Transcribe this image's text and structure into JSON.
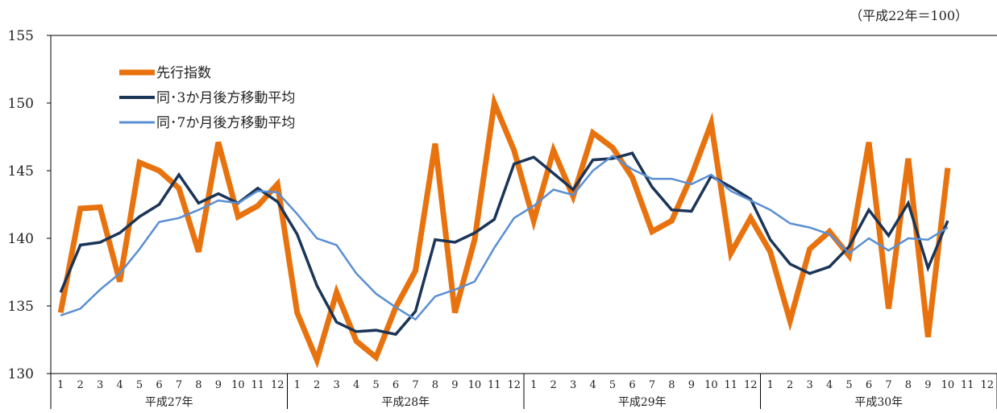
{
  "chart_data": {
    "type": "line",
    "unit_label": "（平成22年＝100）",
    "ylim": [
      130,
      155
    ],
    "yticks": [
      130,
      135,
      140,
      145,
      150,
      155
    ],
    "month_labels": [
      "1",
      "2",
      "3",
      "4",
      "5",
      "6",
      "7",
      "8",
      "9",
      "10",
      "11",
      "12"
    ],
    "years": [
      "平成27年",
      "平成28年",
      "平成29年",
      "平成30年"
    ],
    "legend_position": "top-left",
    "grid": false,
    "series": [
      {
        "name": "先行指数",
        "color": "#E8730E",
        "width": 7,
        "values": [
          134.5,
          142.2,
          142.3,
          136.8,
          145.6,
          145.0,
          143.7,
          139.0,
          147.1,
          141.6,
          142.4,
          144.0,
          134.5,
          131.0,
          136.0,
          132.4,
          131.2,
          134.9,
          137.6,
          147.0,
          134.5,
          139.9,
          150.0,
          146.5,
          141.3,
          146.5,
          143.1,
          147.8,
          146.7,
          144.5,
          140.5,
          141.3,
          144.6,
          148.5,
          138.9,
          141.5,
          139.0,
          133.9,
          139.2,
          140.5,
          138.7,
          147.1,
          134.8,
          145.9,
          132.7,
          145.2
        ]
      },
      {
        "name": "同･3か月後方移動平均",
        "color": "#1B3557",
        "width": 3.5,
        "values": [
          136.0,
          139.5,
          139.7,
          140.4,
          141.6,
          142.5,
          144.7,
          142.6,
          143.3,
          142.6,
          143.7,
          142.7,
          140.3,
          136.5,
          133.8,
          133.1,
          133.2,
          132.9,
          134.6,
          139.9,
          139.7,
          140.4,
          141.4,
          145.5,
          146.0,
          144.8,
          143.6,
          145.8,
          145.9,
          146.3,
          143.8,
          142.1,
          142.0,
          144.6,
          143.8,
          142.9,
          139.9,
          138.1,
          137.4,
          137.9,
          139.4,
          142.1,
          140.2,
          142.6,
          137.8,
          141.3
        ]
      },
      {
        "name": "同･7か月後方移動平均",
        "color": "#5A8FD3",
        "width": 2.5,
        "values": [
          134.3,
          134.8,
          136.2,
          137.4,
          139.2,
          141.2,
          141.5,
          142.1,
          142.8,
          142.6,
          143.5,
          143.4,
          141.8,
          140.0,
          139.5,
          137.4,
          135.9,
          134.9,
          134.0,
          135.7,
          136.2,
          136.8,
          139.3,
          141.5,
          142.4,
          143.6,
          143.2,
          145.0,
          146.1,
          145.1,
          144.4,
          144.4,
          144.0,
          144.7,
          143.5,
          142.8,
          142.1,
          141.1,
          140.8,
          140.3,
          138.9,
          140.0,
          139.1,
          140.0,
          139.9,
          140.8
        ]
      }
    ]
  }
}
